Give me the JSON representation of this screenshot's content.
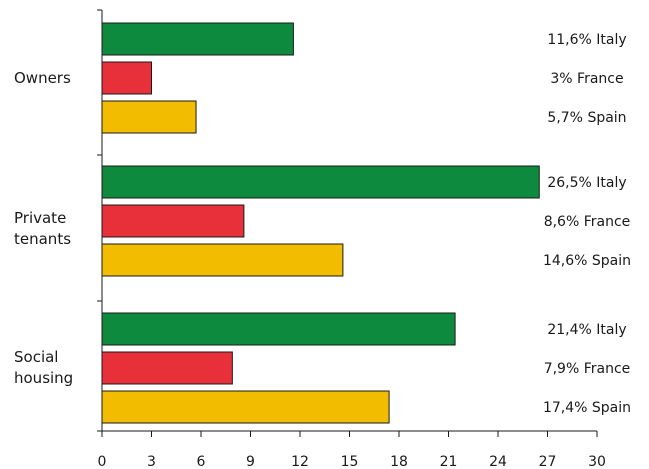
{
  "chart_data": {
    "type": "bar",
    "orientation": "horizontal",
    "categories": [
      {
        "label_lines": [
          "Owners"
        ],
        "bars": [
          {
            "value": 11.6,
            "label": "11,6% Italy"
          },
          {
            "value": 3.0,
            "label": "3% France"
          },
          {
            "value": 5.7,
            "label": "5,7% Spain"
          }
        ]
      },
      {
        "label_lines": [
          "Private",
          "tenants"
        ],
        "bars": [
          {
            "value": 26.5,
            "label": "26,5% Italy"
          },
          {
            "value": 8.6,
            "label": "8,6% France"
          },
          {
            "value": 14.6,
            "label": "14,6% Spain"
          }
        ]
      },
      {
        "label_lines": [
          "Social",
          "housing"
        ],
        "bars": [
          {
            "value": 21.4,
            "label": "21,4% Italy"
          },
          {
            "value": 7.9,
            "label": "7,9% France"
          },
          {
            "value": 17.4,
            "label": "17,4% Spain"
          }
        ]
      }
    ],
    "series": [
      {
        "name": "Italy",
        "color": "#0d8a3e"
      },
      {
        "name": "France",
        "color": "#e8303a"
      },
      {
        "name": "Spain",
        "color": "#f2bc00"
      }
    ],
    "xlim": [
      0,
      30
    ],
    "xticks": [
      0,
      3,
      6,
      9,
      12,
      15,
      18,
      21,
      24,
      27,
      30
    ],
    "grid": false,
    "title": "",
    "xlabel": "",
    "ylabel": ""
  }
}
